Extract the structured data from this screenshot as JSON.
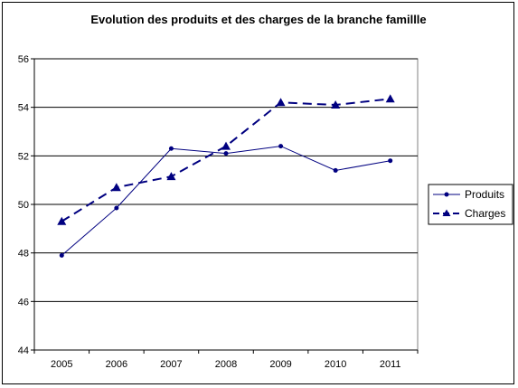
{
  "chart_data": {
    "type": "line",
    "title": "Evolution des produits et des charges de la branche famillle",
    "x": [
      "2005",
      "2006",
      "2007",
      "2008",
      "2009",
      "2010",
      "2011"
    ],
    "ylim": [
      44,
      56
    ],
    "yticks": [
      44,
      46,
      48,
      50,
      52,
      54,
      56
    ],
    "grid": "horizontal",
    "legend_position": "right",
    "series": [
      {
        "name": "Produits",
        "values": [
          47.9,
          49.85,
          52.3,
          52.1,
          52.4,
          51.4,
          51.8
        ],
        "color": "#000080",
        "marker": "circle",
        "line": "solid"
      },
      {
        "name": "Charges",
        "values": [
          49.3,
          50.7,
          51.15,
          52.4,
          54.2,
          54.1,
          54.35
        ],
        "color": "#000080",
        "marker": "triangle",
        "line": "dashed"
      }
    ]
  }
}
